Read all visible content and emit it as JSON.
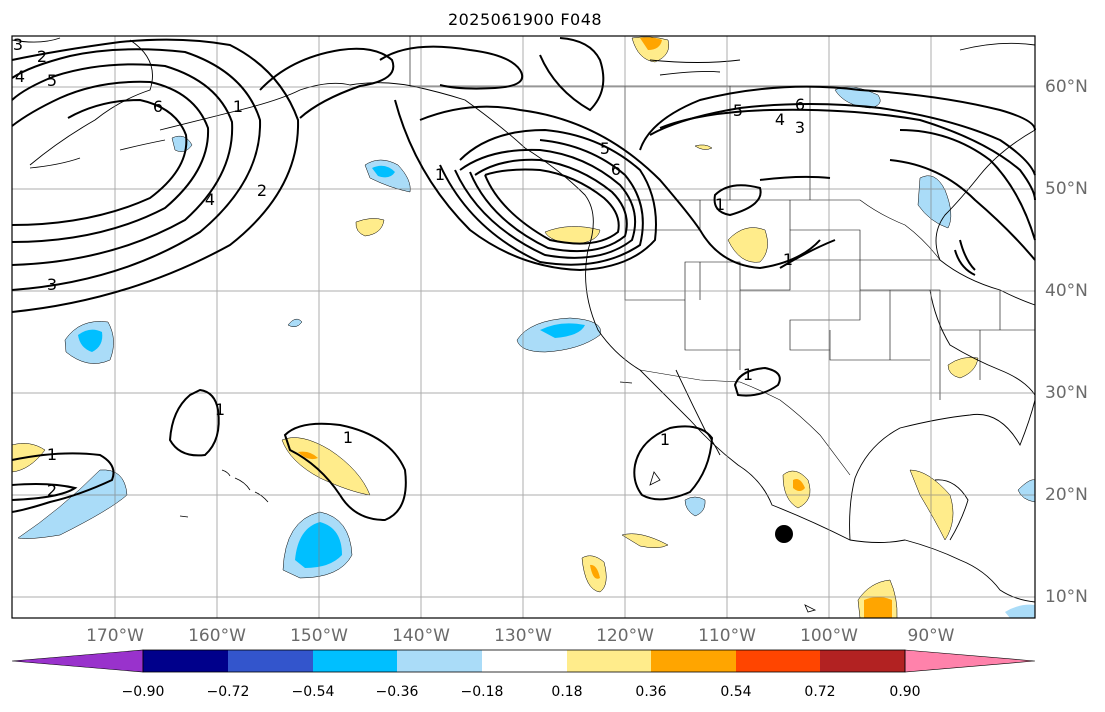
{
  "title": "2025061900 F048",
  "map": {
    "extent": {
      "lon": [
        -180,
        -80
      ],
      "lat": [
        8,
        65
      ]
    },
    "lon_labels": [
      "170°W",
      "160°W",
      "150°W",
      "140°W",
      "130°W",
      "120°W",
      "110°W",
      "100°W",
      "90°W"
    ],
    "lat_labels": [
      "60°N",
      "50°N",
      "40°N",
      "30°N",
      "20°N",
      "10°N"
    ],
    "contour_labels": [
      "3",
      "4",
      "5",
      "6",
      "2",
      "4",
      "2",
      "3",
      "1",
      "5",
      "6",
      "4",
      "3",
      "5",
      "6",
      "1",
      "1",
      "1",
      "1",
      "1",
      "1",
      "2",
      "1",
      "1"
    ],
    "marker": "black-dot"
  },
  "colorbar": {
    "ticks": [
      "−0.90",
      "−0.72",
      "−0.54",
      "−0.36",
      "−0.18",
      "0.18",
      "0.36",
      "0.54",
      "0.72",
      "0.90"
    ],
    "colors": [
      "#9932cc",
      "#00008b",
      "#3355cc",
      "#00bfff",
      "#aadcf8",
      "#ffffff",
      "#ffec8b",
      "#ffa500",
      "#ff4500",
      "#b22222",
      "#ff82ab"
    ]
  }
}
